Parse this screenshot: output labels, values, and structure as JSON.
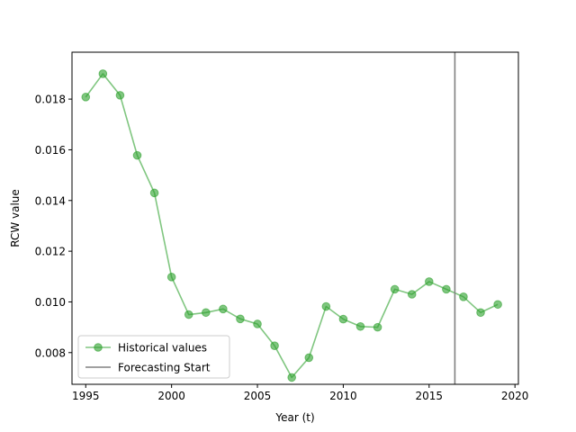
{
  "chart_data": {
    "type": "line",
    "title": "",
    "xlabel": "Year (t)",
    "ylabel": "RCW value",
    "xlim": [
      1994.2,
      2020.2
    ],
    "ylim": [
      0.00675,
      0.01985
    ],
    "xticks": [
      1995,
      2000,
      2005,
      2010,
      2015,
      2020
    ],
    "xtick_labels": [
      "1995",
      "2000",
      "2005",
      "2010",
      "2015",
      "2020"
    ],
    "yticks": [
      0.008,
      0.01,
      0.012,
      0.014,
      0.016,
      0.018
    ],
    "ytick_labels": [
      "0.008",
      "0.010",
      "0.012",
      "0.014",
      "0.016",
      "0.018"
    ],
    "grid": false,
    "legend_position": "lower-left",
    "series": [
      {
        "name": "Historical values",
        "color": "#2ca02c",
        "marker": "circle",
        "x": [
          1995,
          1996,
          1997,
          1998,
          1999,
          2000,
          2001,
          2002,
          2003,
          2004,
          2005,
          2006,
          2007,
          2008,
          2009,
          2010,
          2011,
          2012,
          2013,
          2014,
          2015,
          2016,
          2017,
          2018,
          2019
        ],
        "y": [
          0.01808,
          0.019,
          0.01815,
          0.01578,
          0.0143,
          0.01098,
          0.0095,
          0.00958,
          0.00972,
          0.00933,
          0.00913,
          0.00827,
          0.00702,
          0.0078,
          0.00982,
          0.00932,
          0.00903,
          0.009,
          0.0105,
          0.0103,
          0.0108,
          0.0105,
          0.0102,
          0.00958,
          0.0099
        ]
      }
    ],
    "vlines": [
      {
        "name": "Forecasting Start",
        "x": 2016.5,
        "color": "#808080"
      }
    ]
  }
}
